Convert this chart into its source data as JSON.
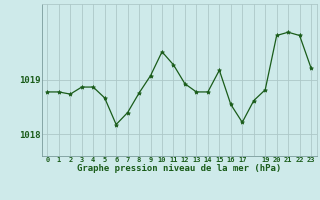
{
  "x": [
    0,
    1,
    2,
    3,
    4,
    5,
    6,
    7,
    8,
    9,
    10,
    11,
    12,
    13,
    14,
    15,
    16,
    17,
    18,
    19,
    20,
    21,
    22,
    23
  ],
  "y": [
    1018.78,
    1018.78,
    1018.74,
    1018.87,
    1018.87,
    1018.67,
    1018.18,
    1018.4,
    1018.76,
    1019.08,
    1019.52,
    1019.28,
    1018.93,
    1018.78,
    1018.78,
    1019.18,
    1018.55,
    1018.22,
    1018.62,
    1018.82,
    1019.82,
    1019.88,
    1019.82,
    1019.22
  ],
  "line_color": "#1a5c1a",
  "marker_color": "#1a5c1a",
  "bg_color": "#ceeaea",
  "grid_color": "#adc8c8",
  "axis_label_color": "#1a5c1a",
  "tick_color": "#1a5c1a",
  "xlabel": "Graphe pression niveau de la mer (hPa)",
  "yticks": [
    1018,
    1019
  ],
  "ylim": [
    1017.6,
    1020.4
  ],
  "xlim": [
    -0.5,
    23.5
  ],
  "xtick_labels": [
    "0",
    "1",
    "2",
    "3",
    "4",
    "5",
    "6",
    "7",
    "8",
    "9",
    "10",
    "11",
    "12",
    "13",
    "14",
    "15",
    "16",
    "17",
    "",
    "19",
    "20",
    "21",
    "22",
    "23"
  ],
  "figsize": [
    3.2,
    2.0
  ],
  "dpi": 100
}
